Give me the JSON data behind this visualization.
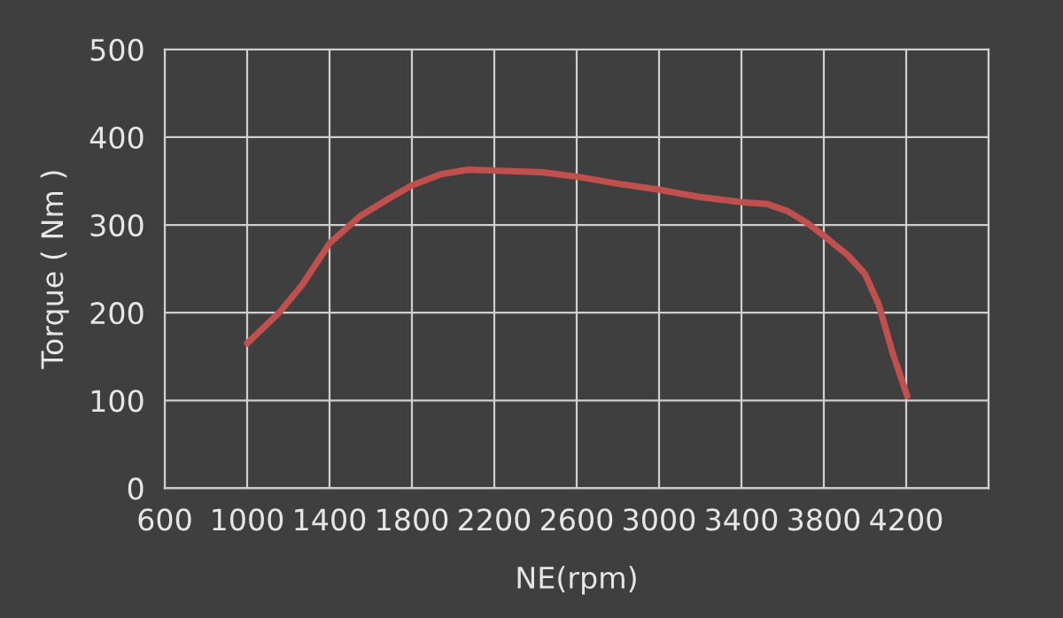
{
  "chart_data": {
    "type": "line",
    "xlabel": "NE(rpm)",
    "ylabel": "Torque ( Nm )",
    "xlim": [
      600,
      4600
    ],
    "ylim": [
      0,
      500
    ],
    "xticks": [
      600,
      1000,
      1400,
      1800,
      2200,
      2600,
      3000,
      3400,
      3800,
      4200,
      {
        "value": 4600,
        "label": null
      }
    ],
    "yticks": [
      0,
      100,
      200,
      300,
      400,
      500
    ],
    "grid": true,
    "marker": "none",
    "line_style": "solid",
    "series": [
      {
        "color": "#c0504d",
        "x": [
          1000,
          1155,
          1268,
          1400,
          1548,
          1680,
          1800,
          1943,
          2075,
          2200,
          2437,
          2602,
          2800,
          3004,
          3194,
          3402,
          3523,
          3622,
          3721,
          3804,
          3919,
          4000,
          4067,
          4133,
          4205
        ],
        "values": [
          165,
          200,
          232,
          279,
          310,
          329,
          345,
          358,
          363,
          362,
          360,
          355,
          347,
          340,
          332,
          326,
          324,
          316,
          302,
          287,
          265,
          244,
          209,
          155,
          105
        ]
      }
    ]
  }
}
